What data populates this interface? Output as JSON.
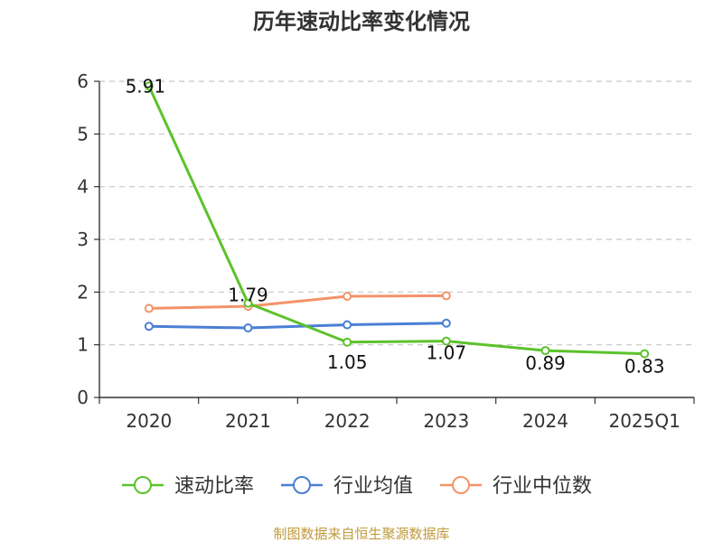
{
  "chart_data": {
    "type": "line",
    "title": "历年速动比率变化情况",
    "categories": [
      "2020",
      "2021",
      "2022",
      "2023",
      "2024",
      "2025Q1"
    ],
    "ylim": [
      0,
      6
    ],
    "yticks": [
      0,
      1,
      2,
      3,
      4,
      5,
      6
    ],
    "grid": true,
    "legend_position": "bottom",
    "series": [
      {
        "name": "速动比率",
        "color": "#5cc22b",
        "values": [
          5.91,
          1.79,
          1.05,
          1.07,
          0.89,
          0.83
        ],
        "labels": [
          "5.91",
          "1.79",
          "1.05",
          "1.07",
          "0.89",
          "0.83"
        ],
        "show_labels": true
      },
      {
        "name": "行业均值",
        "color": "#4a7fd4",
        "values": [
          1.35,
          1.32,
          1.38,
          1.41,
          null,
          null
        ],
        "show_labels": false
      },
      {
        "name": "行业中位数",
        "color": "#f4936a",
        "values": [
          1.69,
          1.73,
          1.92,
          1.93,
          null,
          null
        ],
        "show_labels": false
      }
    ],
    "source": "制图数据来自恒生聚源数据库"
  }
}
